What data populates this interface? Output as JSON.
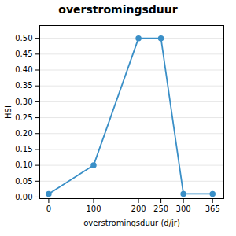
{
  "chart_data": {
    "type": "line",
    "title": "overstromingsduur",
    "xlabel": "overstromingsduur (d/jr)",
    "ylabel": "HSI",
    "x": [
      0,
      100,
      200,
      250,
      300,
      365
    ],
    "values": [
      0.01,
      0.1,
      0.5,
      0.5,
      0.01,
      0.01
    ],
    "color": "#3a8fc7",
    "marker": "circle",
    "xlim": [
      -20,
      390
    ],
    "xticks": [
      0,
      100,
      200,
      250,
      300,
      365
    ],
    "ylim": [
      -0.005,
      0.54
    ],
    "yticks": [
      {
        "value": 0.0,
        "label": "0.00"
      },
      0.05,
      {
        "value": 0.1,
        "label": "0.10"
      },
      0.15,
      {
        "value": 0.2,
        "label": "0.20"
      },
      0.25,
      {
        "value": 0.3,
        "label": "0.30"
      },
      0.35,
      {
        "value": 0.4,
        "label": "0.40"
      },
      0.45,
      {
        "value": 0.5,
        "label": "0.50"
      }
    ],
    "grid": true
  }
}
